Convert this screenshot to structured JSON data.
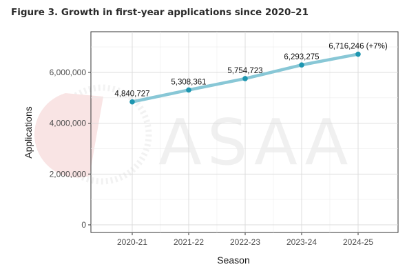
{
  "page": {
    "title": "Figure 3. Growth in first-year applications since 2020–21"
  },
  "watermark": {
    "text": "ASAA"
  },
  "chart_data": {
    "type": "line",
    "title": "Figure 3. Growth in first-year applications since 2020–21",
    "xlabel": "Season",
    "ylabel": "Applications",
    "categories": [
      "2020-21",
      "2021-22",
      "2022-23",
      "2023-24",
      "2024-25"
    ],
    "series": [
      {
        "values": [
          4840727,
          5308361,
          5754723,
          6293275,
          6716246
        ],
        "color": "#88c7d6",
        "marker_color": "#1e96b0"
      }
    ],
    "data_labels": [
      "4,840,727",
      "5,308,361",
      "5,754,723",
      "6,293,275",
      "6,716,246 (+7%)"
    ],
    "y_ticks": [
      0,
      2000000,
      4000000,
      6000000
    ],
    "y_tick_labels": [
      "0",
      "2,000,000",
      "4,000,000",
      "6,000,000"
    ],
    "ylim": [
      -300000,
      7600000
    ],
    "grid": true,
    "legend": "none"
  }
}
